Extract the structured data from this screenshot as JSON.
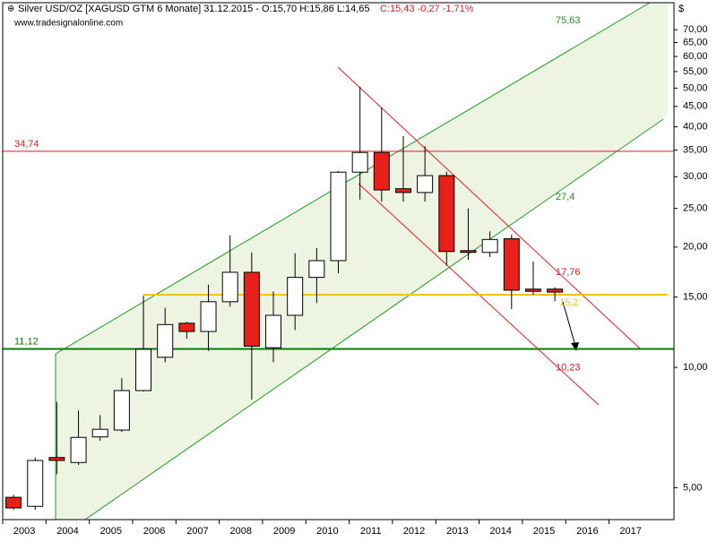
{
  "chart_data": {
    "type": "candlestick",
    "title": "Silver USD/OZ [XAGUSD GTM  6 Monate] 31.12.2015 - O:15,70 H:15,86 L:14,65",
    "title_change": "C:15,43 -0,27 -1,71%",
    "subtitle": "www.tradesignalonline.com",
    "y_label": "$",
    "log_scale": true,
    "x": [
      2003.25,
      2003.75,
      2004.25,
      2004.75,
      2005.25,
      2005.75,
      2006.25,
      2006.75,
      2007.25,
      2007.75,
      2008.25,
      2008.75,
      2009.25,
      2009.75,
      2010.25,
      2010.75,
      2011.25,
      2011.75,
      2012.25,
      2012.75,
      2013.25,
      2013.75,
      2014.25,
      2014.75,
      2015.25,
      2015.75
    ],
    "open": [
      4.73,
      4.49,
      5.95,
      5.78,
      6.7,
      6.97,
      8.75,
      10.6,
      12.9,
      12.3,
      14.6,
      17.3,
      11.2,
      13.5,
      16.8,
      18.5,
      30.8,
      34.5,
      28.0,
      27.4,
      30.2,
      19.6,
      19.4,
      21.0,
      15.7,
      15.7
    ],
    "high": [
      4.8,
      5.95,
      8.2,
      7.8,
      7.6,
      9.4,
      15.1,
      14.1,
      13.0,
      16.1,
      21.4,
      19.4,
      15.5,
      19.3,
      19.9,
      31.0,
      50.4,
      44.7,
      37.9,
      35.8,
      30.9,
      25.0,
      21.9,
      21.5,
      18.4,
      15.86
    ],
    "low": [
      4.4,
      4.4,
      5.4,
      5.7,
      6.55,
      6.9,
      8.7,
      10.3,
      11.8,
      11.0,
      14.2,
      8.3,
      10.3,
      12.4,
      14.5,
      17.2,
      26.3,
      26.0,
      26.0,
      26.0,
      18.0,
      18.6,
      18.9,
      14.0,
      15.2,
      14.65
    ],
    "close": [
      4.45,
      5.85,
      5.85,
      6.68,
      7.0,
      8.75,
      11.1,
      12.8,
      12.3,
      14.6,
      17.3,
      11.3,
      13.5,
      16.8,
      18.5,
      30.8,
      34.5,
      27.8,
      27.4,
      30.2,
      19.5,
      19.4,
      20.9,
      15.6,
      15.5,
      15.43
    ],
    "up_color": "#ffffff",
    "down_color": "#e8201a",
    "xlim": [
      2003,
      2018.5
    ],
    "xticks": [
      2003,
      2004,
      2005,
      2006,
      2007,
      2008,
      2009,
      2010,
      2011,
      2012,
      2013,
      2014,
      2015,
      2016,
      2017
    ],
    "ylim": [
      4.16,
      81.8
    ],
    "yticks": [
      {
        "value": 5,
        "label": "5,00"
      },
      {
        "value": 10,
        "label": "10,00"
      },
      {
        "value": 15,
        "label": "15,00"
      },
      {
        "value": 20,
        "label": "20,00"
      },
      {
        "value": 25,
        "label": "25,00"
      },
      {
        "value": 30,
        "label": "30,00"
      },
      {
        "value": 35,
        "label": "35,00"
      },
      {
        "value": 40,
        "label": "40,00"
      },
      {
        "value": 45,
        "label": "45,00"
      },
      {
        "value": 50,
        "label": "50,00"
      },
      {
        "value": 55,
        "label": "55,00"
      },
      {
        "value": 60,
        "label": "60,00"
      },
      {
        "value": 65,
        "label": "65,00"
      },
      {
        "value": 70,
        "label": "70,00"
      }
    ],
    "hlines": [
      {
        "value": 34.74,
        "label": "34,74",
        "color": "#d42020"
      },
      {
        "value": 11.12,
        "label": "11,12",
        "color": "#0a7a0a"
      },
      {
        "value": 15.2,
        "label": "15,2",
        "color": "#f5c400"
      }
    ],
    "annotations": [
      {
        "value": 75.63,
        "label": "75,63",
        "color": "#2a8a2a"
      },
      {
        "value": 27.4,
        "label": "27,4",
        "color": "#2a8a2a"
      },
      {
        "value": 17.76,
        "label": "17,76",
        "color": "#d42020"
      },
      {
        "value": 10.23,
        "label": "10,23",
        "color": "#d42020"
      }
    ]
  }
}
